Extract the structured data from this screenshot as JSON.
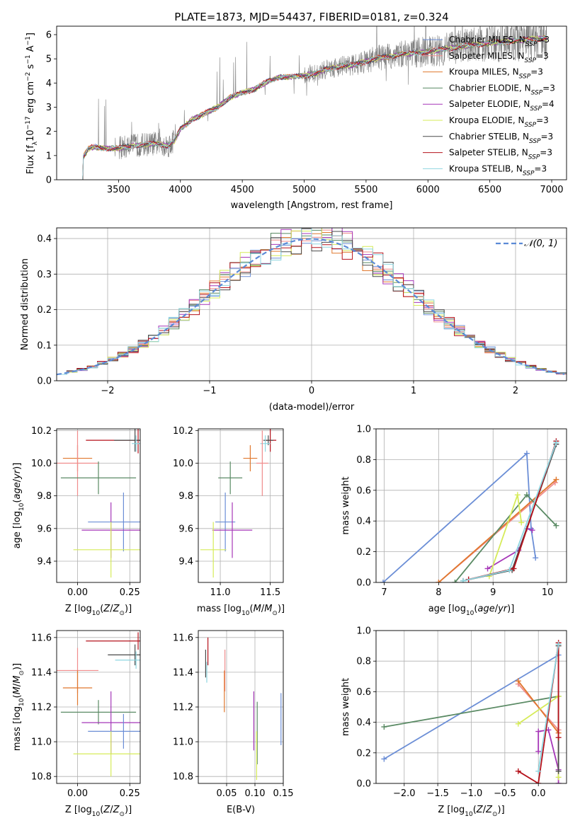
{
  "figure": {
    "title": "PLATE=1873, MJD=54437, FIBERID=0181, z=0.324"
  },
  "chart_data": [
    {
      "id": "spectrum",
      "type": "line",
      "xlabel": "wavelength [Angstrom, rest frame]",
      "ylabel": "Flux [f_λ 10^-17 erg cm^-2 s^-1 A^-1]",
      "xlim": [
        3000,
        7120
      ],
      "ylim": [
        0,
        6.35
      ],
      "xticks": [
        3500,
        4000,
        4500,
        5000,
        5500,
        6000,
        6500,
        7000
      ],
      "yticks": [
        0,
        1,
        2,
        3,
        4,
        5,
        6
      ],
      "grid": false,
      "legend_position": "top-right",
      "data_continuum": {
        "x": [
          3210,
          3260,
          3300,
          3400,
          3500,
          3600,
          3700,
          3800,
          3900,
          3950,
          4000,
          4100,
          4200,
          4300,
          4400,
          4500,
          4600,
          4700,
          4800,
          4900,
          5000,
          5100,
          5200,
          5300,
          5400,
          5500,
          5600,
          5700,
          5800,
          5900,
          6000,
          6200,
          6400,
          6600,
          6800,
          6950
        ],
        "y": [
          0.9,
          1.3,
          1.35,
          1.3,
          1.3,
          1.4,
          1.45,
          1.5,
          1.4,
          1.6,
          2.1,
          2.5,
          2.75,
          3.0,
          3.4,
          3.6,
          3.75,
          4.05,
          4.25,
          4.25,
          4.3,
          4.4,
          4.6,
          4.7,
          4.75,
          4.9,
          5.05,
          5.1,
          5.2,
          5.25,
          5.3,
          5.45,
          5.6,
          5.7,
          5.8,
          5.85
        ]
      },
      "models": [
        {
          "name": "Chabrier MILES, N_SSP=3",
          "color": "#6b8ed6"
        },
        {
          "name": "Salpeter MILES, N_SSP=3",
          "color": "#f08c8c"
        },
        {
          "name": "Kroupa MILES, N_SSP=3",
          "color": "#e0782e"
        },
        {
          "name": "Chabrier ELODIE, N_SSP=3",
          "color": "#5a8a64"
        },
        {
          "name": "Salpeter ELODIE, N_SSP=4",
          "color": "#a637b8"
        },
        {
          "name": "Kroupa ELODIE, N_SSP=3",
          "color": "#d6eb59"
        },
        {
          "name": "Chabrier STELIB, N_SSP=3",
          "color": "#4a4a4a"
        },
        {
          "name": "Salpeter STELIB, N_SSP=3",
          "color": "#b5121b"
        },
        {
          "name": "Kroupa STELIB, N_SSP=3",
          "color": "#8ed6e0"
        }
      ]
    },
    {
      "id": "residuals",
      "type": "line",
      "xlabel": "(data-model)/error",
      "ylabel": "Normed distribution",
      "xlim": [
        -2.5,
        2.5
      ],
      "ylim": [
        0,
        0.43
      ],
      "xticks": [
        -2,
        -1,
        0,
        1,
        2
      ],
      "yticks": [
        0.0,
        0.1,
        0.2,
        0.3,
        0.4
      ],
      "grid": true,
      "legend_position": "top-right",
      "legend": "𝒩(0, 1)",
      "gaussian": {
        "mu": 0,
        "sigma": 1,
        "color": "#5b8ad6"
      },
      "hist_bin_width": 0.1,
      "hist_seed_centers": [
        -2.45,
        -2.15,
        -1.85,
        -1.55,
        -1.25,
        -0.95,
        -0.65,
        -0.35,
        -0.05,
        0.25,
        0.55,
        0.85,
        1.15,
        1.45,
        1.75,
        2.05,
        2.35
      ],
      "hist_colors": [
        "#6b8ed6",
        "#f08c8c",
        "#e0782e",
        "#5a8a64",
        "#a637b8",
        "#d6eb59",
        "#4a4a4a",
        "#b5121b",
        "#8ed6e0"
      ]
    },
    {
      "id": "age_vs_z",
      "type": "scatter",
      "xlabel": "Z [log10(Z/Z⊙)]",
      "ylabel": "age [log10(age/yr)]",
      "xlim": [
        -0.1,
        0.3
      ],
      "ylim": [
        9.27,
        10.21
      ],
      "xticks": [
        0.0,
        0.25
      ],
      "yticks": [
        9.4,
        9.6,
        9.8,
        10.0,
        10.2
      ],
      "grid": true,
      "points": [
        {
          "x": 0.29,
          "y": 10.14,
          "xerr": 0.25,
          "yerr": 0.08,
          "c": 7
        },
        {
          "x": 0.275,
          "y": 10.14,
          "xerr": 0.1,
          "yerr": 0.07,
          "c": 6
        },
        {
          "x": 0.28,
          "y": 10.12,
          "xerr": 0.02,
          "yerr": 0.05,
          "c": 8
        },
        {
          "x": 0.0,
          "y": 10.03,
          "xerr": 0.07,
          "yerr": 0.08,
          "c": 2
        },
        {
          "x": 0.0,
          "y": 10.0,
          "xerr": 0.1,
          "yerr": 0.2,
          "c": 1
        },
        {
          "x": 0.1,
          "y": 9.91,
          "xerr": 0.18,
          "yerr": 0.1,
          "c": 3
        },
        {
          "x": 0.22,
          "y": 9.64,
          "xerr": 0.17,
          "yerr": 0.18,
          "c": 0
        },
        {
          "x": 0.16,
          "y": 9.59,
          "xerr": 0.14,
          "yerr": 0.17,
          "c": 4
        },
        {
          "x": 0.16,
          "y": 9.47,
          "xerr": 0.18,
          "yerr": 0.17,
          "c": 5
        }
      ]
    },
    {
      "id": "age_vs_mass",
      "type": "scatter",
      "xlabel": "mass [log10(M/M⊙)]",
      "ylabel": "",
      "xlim": [
        10.78,
        11.63
      ],
      "ylim": [
        9.27,
        10.21
      ],
      "xticks": [
        11.0,
        11.5
      ],
      "yticks": [
        9.4,
        9.6,
        9.8,
        10.0,
        10.2
      ],
      "grid": true,
      "points": [
        {
          "x": 11.5,
          "y": 10.14,
          "xerr": 0.06,
          "yerr": 0.07,
          "c": 7
        },
        {
          "x": 11.48,
          "y": 10.14,
          "xerr": 0.05,
          "yerr": 0.03,
          "c": 6
        },
        {
          "x": 11.45,
          "y": 10.12,
          "xerr": 0.05,
          "yerr": 0.05,
          "c": 8
        },
        {
          "x": 11.3,
          "y": 10.03,
          "xerr": 0.07,
          "yerr": 0.08,
          "c": 2
        },
        {
          "x": 11.42,
          "y": 10.0,
          "xerr": 0.06,
          "yerr": 0.2,
          "c": 1
        },
        {
          "x": 11.1,
          "y": 9.91,
          "xerr": 0.12,
          "yerr": 0.1,
          "c": 3
        },
        {
          "x": 11.05,
          "y": 9.64,
          "xerr": 0.1,
          "yerr": 0.18,
          "c": 0
        },
        {
          "x": 11.12,
          "y": 9.59,
          "xerr": 0.2,
          "yerr": 0.17,
          "c": 4
        },
        {
          "x": 10.93,
          "y": 9.47,
          "xerr": 0.13,
          "yerr": 0.17,
          "c": 5
        }
      ]
    },
    {
      "id": "weight_vs_age",
      "type": "line",
      "xlabel": "age [log10(age/yr)]",
      "ylabel": "mass weight",
      "xlim": [
        6.85,
        10.35
      ],
      "ylim": [
        0,
        1.0
      ],
      "xticks": [
        7,
        8,
        9,
        10
      ],
      "yticks": [
        0.0,
        0.2,
        0.4,
        0.6,
        0.8,
        1.0
      ],
      "grid": true,
      "series": [
        {
          "c": 0,
          "x": [
            6.98,
            9.62,
            9.7,
            9.78
          ],
          "y": [
            0.0,
            0.84,
            0.35,
            0.16
          ]
        },
        {
          "c": 1,
          "x": [
            8.0,
            10.14
          ],
          "y": [
            0.0,
            0.65
          ]
        },
        {
          "c": 2,
          "x": [
            8.0,
            10.16
          ],
          "y": [
            0.0,
            0.67
          ]
        },
        {
          "c": 3,
          "x": [
            8.3,
            9.62,
            10.16
          ],
          "y": [
            0.0,
            0.57,
            0.37
          ]
        },
        {
          "c": 4,
          "x": [
            8.9,
            9.47,
            9.62,
            9.72
          ],
          "y": [
            0.09,
            0.21,
            0.35,
            0.34
          ]
        },
        {
          "c": 5,
          "x": [
            8.93,
            9.45,
            9.52
          ],
          "y": [
            0.04,
            0.57,
            0.39
          ]
        },
        {
          "c": 6,
          "x": [
            8.45,
            9.35,
            10.16
          ],
          "y": [
            0.01,
            0.08,
            0.9
          ]
        },
        {
          "c": 7,
          "x": [
            8.55,
            9.38,
            10.16
          ],
          "y": [
            0.02,
            0.09,
            0.92
          ]
        },
        {
          "c": 8,
          "x": [
            8.45,
            9.3,
            10.16
          ],
          "y": [
            0.01,
            0.08,
            0.91
          ]
        }
      ]
    },
    {
      "id": "mass_vs_z",
      "type": "scatter",
      "xlabel": "Z [log10(Z/Z⊙)]",
      "ylabel": "mass [log10(M/M⊙)]",
      "xlim": [
        -0.1,
        0.3
      ],
      "ylim": [
        10.76,
        11.64
      ],
      "xticks": [
        0.0,
        0.25
      ],
      "yticks": [
        10.8,
        11.0,
        11.2,
        11.4,
        11.6
      ],
      "grid": true,
      "points": [
        {
          "x": 0.29,
          "y": 11.58,
          "xerr": 0.25,
          "yerr": 0.05,
          "c": 7
        },
        {
          "x": 0.275,
          "y": 11.5,
          "xerr": 0.13,
          "yerr": 0.06,
          "c": 6
        },
        {
          "x": 0.28,
          "y": 11.47,
          "xerr": 0.1,
          "yerr": 0.05,
          "c": 8
        },
        {
          "x": 0.0,
          "y": 11.41,
          "xerr": 0.1,
          "yerr": 0.13,
          "c": 1
        },
        {
          "x": 0.0,
          "y": 11.31,
          "xerr": 0.07,
          "yerr": 0.1,
          "c": 2
        },
        {
          "x": 0.1,
          "y": 11.17,
          "xerr": 0.18,
          "yerr": 0.07,
          "c": 3
        },
        {
          "x": 0.16,
          "y": 11.11,
          "xerr": 0.14,
          "yerr": 0.18,
          "c": 4
        },
        {
          "x": 0.22,
          "y": 11.06,
          "xerr": 0.17,
          "yerr": 0.1,
          "c": 0
        },
        {
          "x": 0.16,
          "y": 10.93,
          "xerr": 0.18,
          "yerr": 0.13,
          "c": 5
        }
      ]
    },
    {
      "id": "mass_vs_ebv",
      "type": "scatter",
      "xlabel": "E(B-V)",
      "ylabel": "",
      "xlim": [
        0.0,
        0.15
      ],
      "ylim": [
        10.76,
        11.64
      ],
      "xticks": [
        0.05,
        0.1,
        0.15
      ],
      "yticks": [
        10.8,
        11.0,
        11.2,
        11.4,
        11.6
      ],
      "grid": true,
      "points": [
        {
          "x": 0.017,
          "y": 11.52,
          "yerr": 0.08,
          "c": 7
        },
        {
          "x": 0.013,
          "y": 11.45,
          "yerr": 0.08,
          "c": 6
        },
        {
          "x": 0.015,
          "y": 11.4,
          "yerr": 0.06,
          "c": 8
        },
        {
          "x": 0.047,
          "y": 11.41,
          "yerr": 0.12,
          "c": 1
        },
        {
          "x": 0.046,
          "y": 11.29,
          "yerr": 0.12,
          "c": 2
        },
        {
          "x": 0.104,
          "y": 11.05,
          "yerr": 0.18,
          "c": 3
        },
        {
          "x": 0.098,
          "y": 11.12,
          "yerr": 0.17,
          "c": 4
        },
        {
          "x": 0.146,
          "y": 11.13,
          "yerr": 0.15,
          "c": 0
        },
        {
          "x": 0.103,
          "y": 10.92,
          "yerr": 0.14,
          "c": 5
        }
      ]
    },
    {
      "id": "weight_vs_z",
      "type": "line",
      "xlabel": "Z [log10(Z/Z⊙)]",
      "ylabel": "mass weight",
      "xlim": [
        -2.42,
        0.42
      ],
      "ylim": [
        0,
        1.0
      ],
      "xticks": [
        -2.0,
        -1.5,
        -1.0,
        -0.5,
        0.0
      ],
      "yticks": [
        0.0,
        0.2,
        0.4,
        0.6,
        0.8,
        1.0
      ],
      "grid": true,
      "series": [
        {
          "c": 0,
          "x": [
            -2.3,
            0.3
          ],
          "y": [
            0.16,
            0.84
          ]
        },
        {
          "c": 1,
          "x": [
            -0.3,
            0.3
          ],
          "y": [
            0.65,
            0.35
          ]
        },
        {
          "c": 2,
          "x": [
            -0.3,
            0.3
          ],
          "y": [
            0.67,
            0.33
          ]
        },
        {
          "c": 3,
          "x": [
            -2.3,
            0.3
          ],
          "y": [
            0.37,
            0.57
          ]
        },
        {
          "c": 4,
          "x": [
            0.0,
            0.0,
            0.15,
            0.3,
            0.3
          ],
          "y": [
            0.21,
            0.34,
            0.35,
            0.09,
            0.0
          ]
        },
        {
          "c": 5,
          "x": [
            -0.3,
            0.3,
            0.3
          ],
          "y": [
            0.39,
            0.57,
            0.04
          ]
        },
        {
          "c": 6,
          "x": [
            0.3,
            0.3
          ],
          "y": [
            0.9,
            0.08
          ]
        },
        {
          "c": 7,
          "x": [
            -0.3,
            0.0,
            0.3,
            0.3
          ],
          "y": [
            0.08,
            0.0,
            0.92,
            0.3
          ]
        },
        {
          "c": 8,
          "x": [
            0.0,
            0.3
          ],
          "y": [
            0.08,
            0.91
          ]
        }
      ]
    }
  ]
}
